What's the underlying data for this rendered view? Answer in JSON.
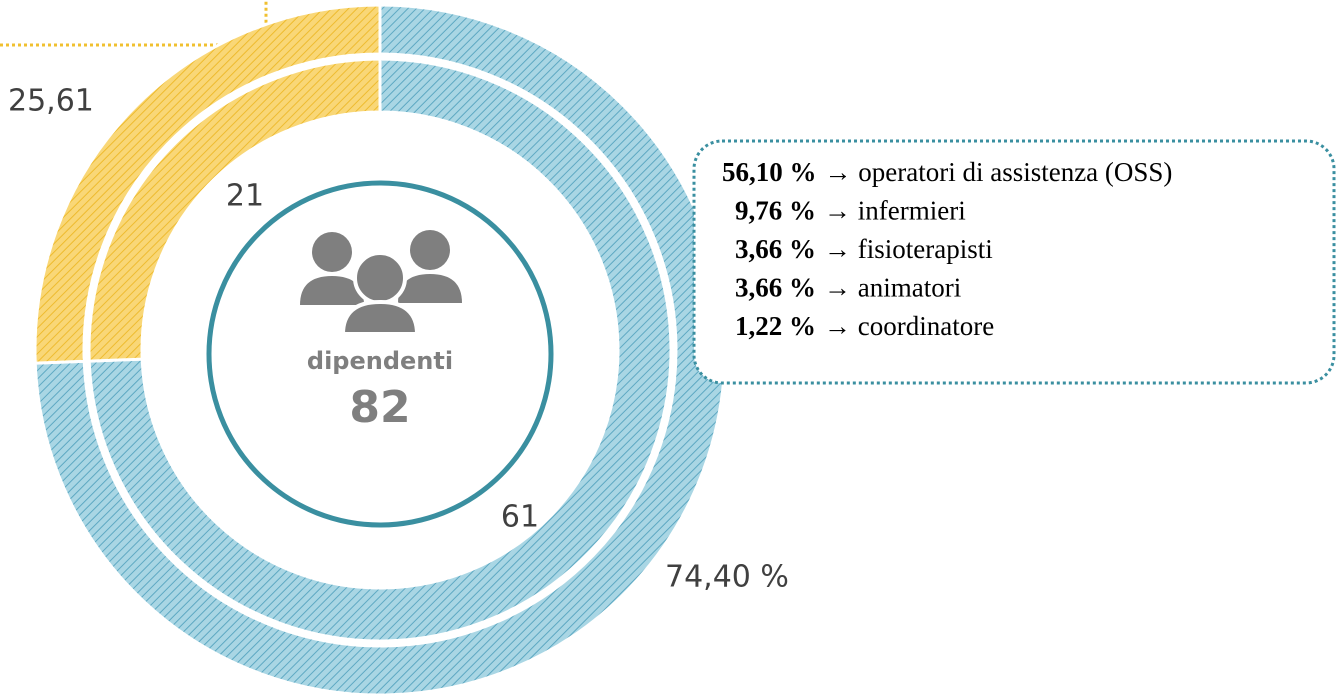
{
  "chart_data": {
    "type": "donut",
    "rings": [
      {
        "values": [
          74.4,
          25.61
        ],
        "value_labels": [
          "74,40 %",
          "25,61"
        ],
        "colors": [
          "#9fd0e0",
          "#f6c94a"
        ]
      },
      {
        "values": [
          61,
          21
        ],
        "colors": [
          "#9fd0e0",
          "#f6c94a"
        ]
      }
    ],
    "center": {
      "label": "dipendenti",
      "total": "82"
    }
  },
  "callout": [
    {
      "percent": "56,10 %",
      "label": "→ operatori di assistenza (OSS)"
    },
    {
      "percent": "9,76 %",
      "label": "→ infermieri"
    },
    {
      "percent": "3,66 %",
      "label": "→ fisioterapisti"
    },
    {
      "percent": "3,66 %",
      "label": "→ animatori"
    },
    {
      "percent": "1,22 %",
      "label": "→ coordinatore"
    }
  ]
}
